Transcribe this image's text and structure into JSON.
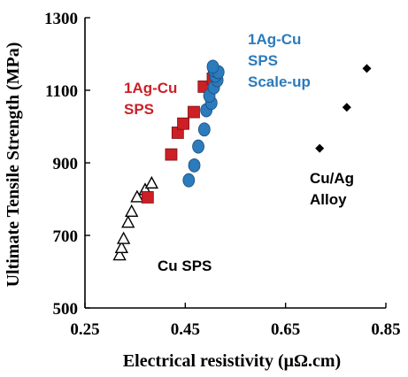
{
  "chart_data": {
    "type": "scatter",
    "xlabel": "Electrical resistivity (μΩ.cm)",
    "ylabel": "Ultimate Tensile Strength (MPa)",
    "xlim": [
      0.25,
      0.85
    ],
    "ylim": [
      500,
      1300
    ],
    "xticks": [
      "0.25",
      "0.45",
      "0.65",
      "0.85"
    ],
    "yticks": [
      "500",
      "700",
      "900",
      "1100",
      "1300"
    ],
    "grid": false,
    "series": [
      {
        "label_lines": [
          "Cu SPS"
        ],
        "marker": "open-triangle",
        "color": "#000000",
        "points": [
          [
            0.319,
            645
          ],
          [
            0.323,
            665
          ],
          [
            0.327,
            690
          ],
          [
            0.336,
            735
          ],
          [
            0.343,
            765
          ],
          [
            0.354,
            805
          ],
          [
            0.37,
            825
          ],
          [
            0.383,
            843
          ]
        ]
      },
      {
        "label_lines": [
          "1Ag-Cu",
          "SPS"
        ],
        "marker": "square",
        "color": "#cc1f26",
        "points": [
          [
            0.375,
            805
          ],
          [
            0.422,
            923
          ],
          [
            0.435,
            983
          ],
          [
            0.446,
            1008
          ],
          [
            0.467,
            1040
          ],
          [
            0.487,
            1110
          ],
          [
            0.505,
            1132
          ]
        ]
      },
      {
        "label_lines": [
          "1Ag-Cu",
          "SPS",
          "Scale-up"
        ],
        "marker": "circle",
        "color": "#2b7bbd",
        "points": [
          [
            0.457,
            852
          ],
          [
            0.468,
            893
          ],
          [
            0.476,
            945
          ],
          [
            0.488,
            992
          ],
          [
            0.492,
            1045
          ],
          [
            0.502,
            1065
          ],
          [
            0.498,
            1085
          ],
          [
            0.507,
            1108
          ],
          [
            0.514,
            1128
          ],
          [
            0.51,
            1140
          ],
          [
            0.507,
            1155
          ],
          [
            0.516,
            1150
          ],
          [
            0.505,
            1165
          ]
        ]
      },
      {
        "label_lines": [
          "Cu/Ag",
          "Alloy"
        ],
        "marker": "diamond",
        "color": "#000000",
        "points": [
          [
            0.718,
            940
          ],
          [
            0.772,
            1053
          ],
          [
            0.812,
            1160
          ]
        ]
      }
    ]
  }
}
